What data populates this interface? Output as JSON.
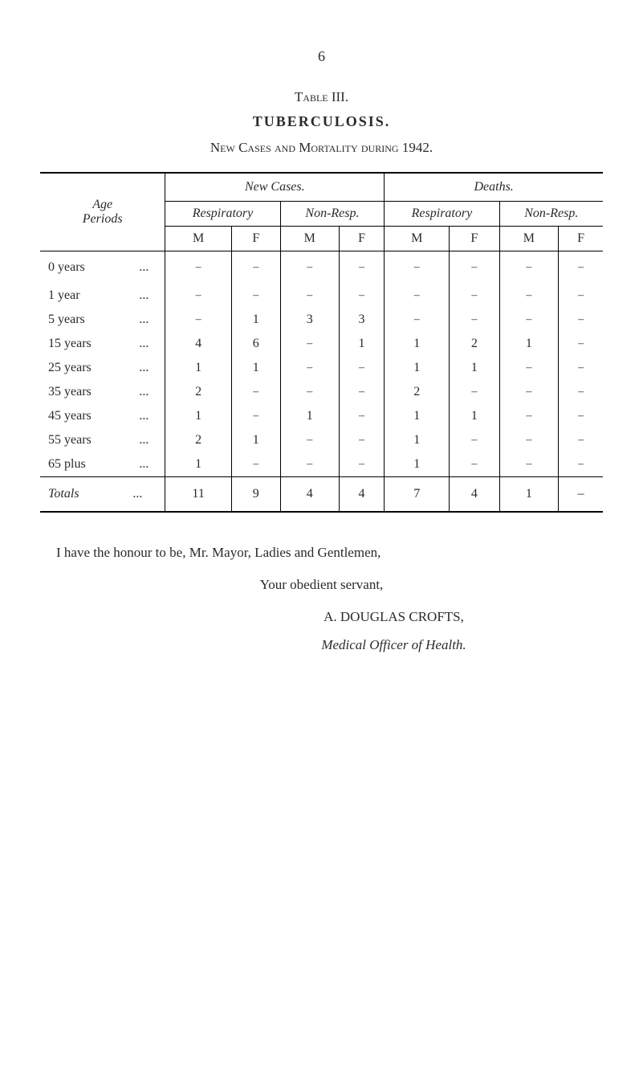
{
  "page_number": "6",
  "table_label": "Table III.",
  "table_title": "TUBERCULOSIS.",
  "table_subtitle": "New Cases and Mortality during 1942.",
  "headers": {
    "age_periods": "Age\nPeriods",
    "new_cases": "New Cases.",
    "deaths": "Deaths.",
    "respiratory": "Respiratory",
    "non_resp": "Non-Resp.",
    "m": "M",
    "f": "F"
  },
  "rows": [
    {
      "label": "0 years",
      "dots": "...",
      "values": [
        "–",
        "–",
        "–",
        "–",
        "–",
        "–",
        "–",
        "–"
      ]
    },
    {
      "label": "1 year",
      "dots": "...",
      "values": [
        "–",
        "–",
        "–",
        "–",
        "–",
        "–",
        "–",
        "–"
      ]
    },
    {
      "label": "5 years",
      "dots": "...",
      "values": [
        "–",
        "1",
        "3",
        "3",
        "–",
        "–",
        "–",
        "–"
      ]
    },
    {
      "label": "15 years",
      "dots": "...",
      "values": [
        "4",
        "6",
        "–",
        "1",
        "1",
        "2",
        "1",
        "–"
      ]
    },
    {
      "label": "25 years",
      "dots": "...",
      "values": [
        "1",
        "1",
        "–",
        "–",
        "1",
        "1",
        "–",
        "–"
      ]
    },
    {
      "label": "35 years",
      "dots": "...",
      "values": [
        "2",
        "–",
        "–",
        "–",
        "2",
        "–",
        "–",
        "–"
      ]
    },
    {
      "label": "45 years",
      "dots": "...",
      "values": [
        "1",
        "–",
        "1",
        "–",
        "1",
        "1",
        "–",
        "–"
      ]
    },
    {
      "label": "55 years",
      "dots": "...",
      "values": [
        "2",
        "1",
        "–",
        "–",
        "1",
        "–",
        "–",
        "–"
      ]
    },
    {
      "label": "65 plus",
      "dots": "...",
      "values": [
        "1",
        "–",
        "–",
        "–",
        "1",
        "–",
        "–",
        "–"
      ]
    }
  ],
  "totals": {
    "label": "Totals",
    "dots": "...",
    "values": [
      "11",
      "9",
      "4",
      "4",
      "7",
      "4",
      "1",
      "–"
    ]
  },
  "closing": {
    "line1": "I have the honour to be, Mr. Mayor, Ladies and Gentlemen,",
    "line2": "Your obedient servant,",
    "line3": "A. DOUGLAS CROFTS,",
    "line4": "Medical Officer of Health."
  }
}
